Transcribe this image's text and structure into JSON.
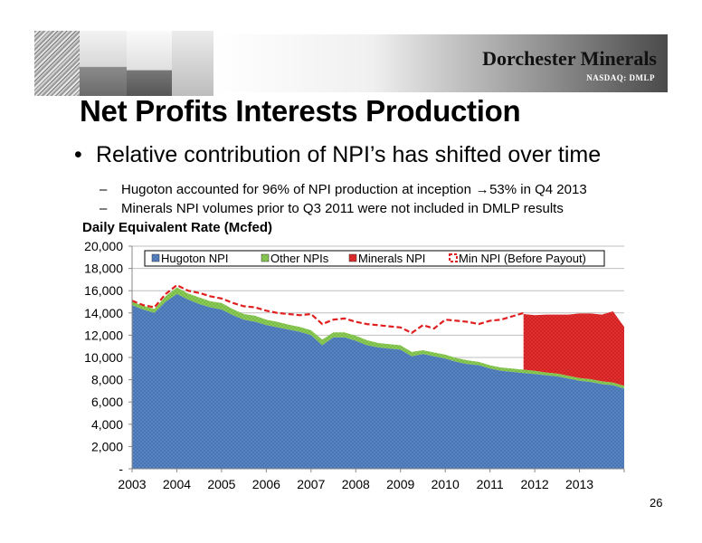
{
  "header": {
    "brand": "Dorchester Minerals",
    "ticker": "NASDAQ: DMLP"
  },
  "slide": {
    "title": "Net Profits Interests Production",
    "bullet": "Relative contribution of NPI’s has shifted over time",
    "sub1_a": "Hugoton accounted for 96% of NPI production at inception",
    "sub1_b": "53% in Q4 2013",
    "sub2": "Minerals NPI volumes prior to Q3 2011 were not included in DMLP results",
    "page_number": "26"
  },
  "colors": {
    "hugoton": "#5b86c5",
    "other": "#8fcf5a",
    "minerals": "#e53030",
    "before_payout": "#e02020"
  },
  "chart_data": {
    "type": "area",
    "title": "Daily Equivalent Rate (Mcfed)",
    "xlabel": "",
    "ylabel": "",
    "xlim": [
      2003.0,
      2014.0
    ],
    "ylim": [
      0,
      20000
    ],
    "yticks": [
      0,
      2000,
      4000,
      6000,
      8000,
      10000,
      12000,
      14000,
      16000,
      18000,
      20000
    ],
    "ytick_labels": [
      "-",
      "2,000",
      "4,000",
      "6,000",
      "8,000",
      "10,000",
      "12,000",
      "14,000",
      "16,000",
      "18,000",
      "20,000"
    ],
    "xticks": [
      2003,
      2004,
      2005,
      2006,
      2007,
      2008,
      2009,
      2010,
      2011,
      2012,
      2013
    ],
    "grid": true,
    "legend": "top",
    "x": [
      2003.0,
      2003.25,
      2003.5,
      2003.75,
      2004.0,
      2004.25,
      2004.5,
      2004.75,
      2005.0,
      2005.25,
      2005.5,
      2005.75,
      2006.0,
      2006.25,
      2006.5,
      2006.75,
      2007.0,
      2007.25,
      2007.5,
      2007.75,
      2008.0,
      2008.25,
      2008.5,
      2008.75,
      2009.0,
      2009.25,
      2009.5,
      2009.75,
      2010.0,
      2010.25,
      2010.5,
      2010.75,
      2011.0,
      2011.25,
      2011.5,
      2011.75,
      2012.0,
      2012.25,
      2012.5,
      2012.75,
      2013.0,
      2013.25,
      2013.5,
      2013.75,
      2014.0
    ],
    "series": [
      {
        "name": "Hugoton NPI",
        "values": [
          14700,
          14300,
          14000,
          15000,
          15700,
          15200,
          14800,
          14500,
          14300,
          13800,
          13400,
          13200,
          12900,
          12700,
          12500,
          12300,
          12000,
          11100,
          11800,
          11800,
          11500,
          11100,
          10900,
          10800,
          10700,
          10100,
          10300,
          10100,
          9900,
          9600,
          9400,
          9300,
          9000,
          8800,
          8700,
          8600,
          8500,
          8400,
          8300,
          8100,
          7900,
          7800,
          7600,
          7500,
          7200
        ]
      },
      {
        "name": "Other NPIs",
        "values": [
          300,
          350,
          350,
          500,
          600,
          550,
          600,
          550,
          600,
          550,
          500,
          550,
          500,
          500,
          450,
          450,
          450,
          500,
          450,
          450,
          450,
          450,
          400,
          400,
          400,
          400,
          350,
          350,
          350,
          350,
          350,
          300,
          300,
          300,
          300,
          300,
          300,
          250,
          250,
          250,
          250,
          250,
          250,
          250,
          250
        ]
      },
      {
        "name": "Minerals NPI",
        "values": [
          0,
          0,
          0,
          0,
          0,
          0,
          0,
          0,
          0,
          0,
          0,
          0,
          0,
          0,
          0,
          0,
          0,
          0,
          0,
          0,
          0,
          0,
          0,
          0,
          0,
          0,
          0,
          0,
          0,
          0,
          0,
          0,
          0,
          0,
          0,
          5000,
          5000,
          5200,
          5300,
          5500,
          5800,
          5900,
          6000,
          6400,
          5300
        ]
      },
      {
        "name": "Min NPI (Before Payout)",
        "type": "line",
        "values": [
          15100,
          14700,
          14500,
          15700,
          16500,
          16000,
          15800,
          15500,
          15300,
          14900,
          14600,
          14500,
          14200,
          14000,
          13900,
          13800,
          13900,
          13000,
          13400,
          13500,
          13200,
          13000,
          12900,
          12800,
          12700,
          12200,
          12900,
          12600,
          13400,
          13300,
          13200,
          13000,
          13300,
          13400,
          13700,
          14000,
          null,
          null,
          null,
          null,
          null,
          null,
          null,
          null,
          null
        ]
      }
    ]
  }
}
